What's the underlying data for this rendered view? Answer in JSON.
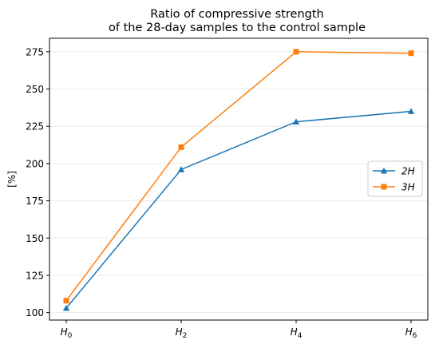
{
  "chart_data": {
    "type": "line",
    "title": [
      "Ratio of compressive strength",
      "of the 28-day samples to the control sample"
    ],
    "xlabel": "",
    "ylabel": "[%]",
    "categories": [
      {
        "base": "H",
        "sub": "0"
      },
      {
        "base": "H",
        "sub": "2"
      },
      {
        "base": "H",
        "sub": "4"
      },
      {
        "base": "H",
        "sub": "6"
      }
    ],
    "ylim": [
      95,
      284
    ],
    "yticks": [
      100,
      125,
      150,
      175,
      200,
      225,
      250,
      275
    ],
    "grid": true,
    "legend_position": "center-right",
    "series": [
      {
        "name": "2H",
        "color": "#1f77b4",
        "marker": "triangle",
        "values": [
          103,
          196,
          228,
          235
        ]
      },
      {
        "name": "3H",
        "color": "#ff7f0e",
        "marker": "square",
        "values": [
          108,
          211,
          275,
          274
        ]
      }
    ]
  }
}
